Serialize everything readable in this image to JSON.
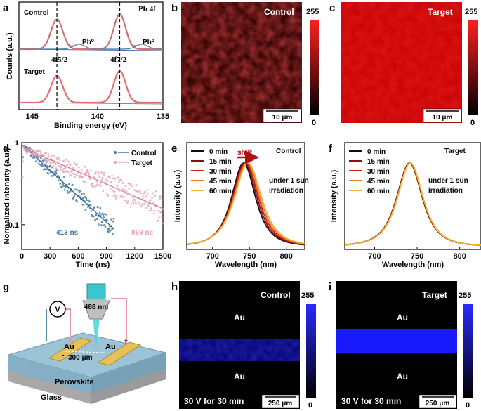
{
  "chart_data": [
    {
      "id": "a",
      "type": "line",
      "panel": "a",
      "xlabel": "Binding energy (eV)",
      "ylabel": "Counts (a.u.)",
      "xlim": [
        146,
        135
      ],
      "xticks": [
        "145",
        "140",
        "135"
      ],
      "labels": {
        "control": "Control",
        "target": "Target",
        "pb4f": "Pb 4f",
        "pb0_left": "Pb⁰",
        "pb0_right": "Pb⁰",
        "f52": "4f5/2",
        "f72": "4f7/2"
      },
      "peaks": [
        143.1,
        138.3
      ],
      "pb0_peaks": [
        141.4,
        136.6
      ]
    },
    {
      "id": "b",
      "type": "heatmap",
      "panel": "b",
      "title": "Control",
      "colorbar": {
        "max": "255",
        "min": "0"
      },
      "scalebar": "10 μm",
      "color": "#e01010",
      "intensity": 0.35
    },
    {
      "id": "c",
      "type": "heatmap",
      "panel": "c",
      "title": "Target",
      "colorbar": {
        "max": "255",
        "min": "0"
      },
      "scalebar": "10 μm",
      "color": "#e01010",
      "intensity": 0.9
    },
    {
      "id": "d",
      "type": "scatter",
      "panel": "d",
      "xlabel": "Time (ns)",
      "ylabel": "Normalized intensity (a.u.)",
      "xlim": [
        0,
        1500
      ],
      "ylim_log": [
        0.05,
        1
      ],
      "xticks": [
        "0",
        "300",
        "600",
        "900",
        "1200",
        "1500"
      ],
      "yticks": [
        "1",
        "0.1"
      ],
      "series": [
        {
          "name": "Control",
          "color": "#3f79a3",
          "lifetime": 413,
          "label": "413 ns"
        },
        {
          "name": "Target",
          "color": "#e8a1b3",
          "lifetime": 869,
          "label": "869 ns"
        }
      ]
    },
    {
      "id": "e",
      "type": "line",
      "panel": "e",
      "xlabel": "Wavelength (nm)",
      "ylabel": "Intensity (a.u.)",
      "xlim": [
        665,
        825
      ],
      "xticks": [
        "700",
        "750",
        "800"
      ],
      "title": "Control",
      "annotation": "under 1 sun irradiation",
      "arrow_label": "shift",
      "series": [
        {
          "name": "0 min",
          "color": "#1a0a0a",
          "center": 742
        },
        {
          "name": "15 min",
          "color": "#8a1010",
          "center": 743.5
        },
        {
          "name": "30 min",
          "color": "#d42020",
          "center": 745
        },
        {
          "name": "45 min",
          "color": "#ee7a20",
          "center": 746.5
        },
        {
          "name": "60 min",
          "color": "#f0b030",
          "center": 748
        }
      ]
    },
    {
      "id": "f",
      "type": "line",
      "panel": "f",
      "xlabel": "Wavelength (nm)",
      "ylabel": "Intensity (a.u.)",
      "xlim": [
        665,
        825
      ],
      "xticks": [
        "700",
        "750",
        "800"
      ],
      "title": "Target",
      "annotation": "under 1 sun irradiation",
      "series": [
        {
          "name": "0 min",
          "color": "#1a0a0a",
          "center": 741
        },
        {
          "name": "15 min",
          "color": "#8a1010",
          "center": 741.3
        },
        {
          "name": "30 min",
          "color": "#d42020",
          "center": 741.5
        },
        {
          "name": "45 min",
          "color": "#ee7a20",
          "center": 741.8
        },
        {
          "name": "60 min",
          "color": "#f0b030",
          "center": 742
        }
      ]
    },
    {
      "id": "g",
      "type": "diagram",
      "panel": "g",
      "labels": {
        "v": "V",
        "laser": "488 nm",
        "au_left": "Au",
        "au_right": "Au",
        "minus": "-",
        "plus": "+",
        "gap": "300 μm",
        "perovskite": "Perovskite",
        "glass": "Glass"
      }
    },
    {
      "id": "h",
      "type": "heatmap",
      "panel": "h",
      "title": "Control",
      "top": "Au",
      "bottom": "Au",
      "caption": "30 V for 30 min",
      "scalebar": "250 μm",
      "colorbar": {
        "max": "255",
        "min": "0"
      },
      "band_color": "#1a1acc"
    },
    {
      "id": "i",
      "type": "heatmap",
      "panel": "i",
      "title": "Target",
      "top": "Au",
      "bottom": "Au",
      "caption": "30 V for 30 min",
      "scalebar": "250 μm",
      "colorbar": {
        "max": "255",
        "min": "0"
      },
      "band_color": "#1a1aff"
    }
  ]
}
